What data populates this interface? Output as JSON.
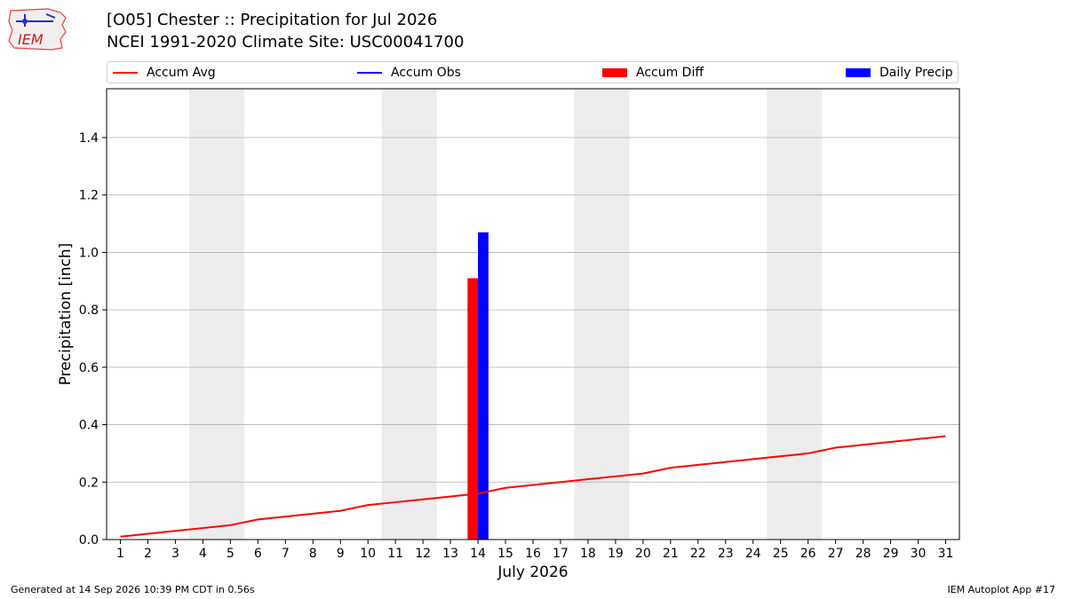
{
  "header": {
    "logo_text": "IEM",
    "title_line1": "[O05] Chester :: Precipitation for Jul 2026",
    "title_line2": "NCEI 1991-2020 Climate Site: USC00041700"
  },
  "legend": {
    "placement": "top, above plot",
    "items": [
      {
        "label": "Accum Avg",
        "kind": "line",
        "color": "#ff0000"
      },
      {
        "label": "Accum Obs",
        "kind": "line",
        "color": "#0000ff"
      },
      {
        "label": "Accum Diff",
        "kind": "box",
        "color": "#ff0000"
      },
      {
        "label": "Daily Precip",
        "kind": "box",
        "color": "#0000ff"
      }
    ]
  },
  "chart_data": {
    "type": "bar",
    "xlabel": "July 2026",
    "ylabel": "Precipitation [inch]",
    "x_ticks": [
      1,
      2,
      3,
      4,
      5,
      6,
      7,
      8,
      9,
      10,
      11,
      12,
      13,
      14,
      15,
      16,
      17,
      18,
      19,
      20,
      21,
      22,
      23,
      24,
      25,
      26,
      27,
      28,
      29,
      30,
      31
    ],
    "x_range": [
      0.5,
      31.5
    ],
    "ylim": [
      0,
      1.57
    ],
    "y_ticks": [
      0.0,
      0.2,
      0.4,
      0.6,
      0.8,
      1.0,
      1.2,
      1.4
    ],
    "grid": "horizontal",
    "weekend_shading": [
      [
        3.5,
        5.5
      ],
      [
        10.5,
        12.5
      ],
      [
        17.5,
        19.5
      ],
      [
        24.5,
        26.5
      ]
    ],
    "series": [
      {
        "name": "Accum Avg",
        "type": "line",
        "color": "#ff0000",
        "x": [
          1,
          2,
          3,
          4,
          5,
          6,
          7,
          8,
          9,
          10,
          11,
          12,
          13,
          14,
          15,
          16,
          17,
          18,
          19,
          20,
          21,
          22,
          23,
          24,
          25,
          26,
          27,
          28,
          29,
          30,
          31
        ],
        "values": [
          0.01,
          0.02,
          0.03,
          0.04,
          0.05,
          0.07,
          0.08,
          0.09,
          0.1,
          0.12,
          0.13,
          0.14,
          0.15,
          0.16,
          0.18,
          0.19,
          0.2,
          0.21,
          0.22,
          0.23,
          0.25,
          0.26,
          0.27,
          0.28,
          0.29,
          0.3,
          0.32,
          0.33,
          0.34,
          0.35,
          0.36
        ]
      },
      {
        "name": "Accum Diff",
        "type": "bar",
        "color": "#ff0000",
        "x": [
          14
        ],
        "values": [
          0.91
        ]
      },
      {
        "name": "Daily Precip",
        "type": "bar",
        "color": "#0000ff",
        "x": [
          14
        ],
        "values": [
          1.07
        ]
      }
    ]
  },
  "footer": {
    "generated": "Generated at 14 Sep 2026 10:39 PM CDT in 0.56s",
    "app": "IEM Autoplot App #17"
  }
}
